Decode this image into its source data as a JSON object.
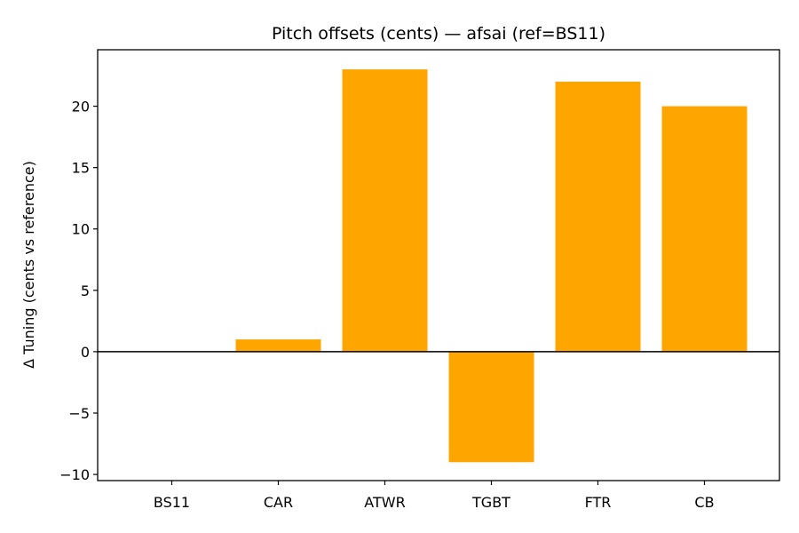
{
  "chart_data": {
    "type": "bar",
    "title": "Pitch offsets (cents) — afsai (ref=BS11)",
    "xlabel": "",
    "ylabel": "Δ Tuning (cents vs reference)",
    "categories": [
      "BS11",
      "CAR",
      "ATWR",
      "TGBT",
      "FTR",
      "CB"
    ],
    "values": [
      0,
      1,
      23,
      -9,
      22,
      20
    ],
    "ylim": [
      -10.5,
      24.6
    ],
    "yticks": [
      -10,
      -5,
      0,
      5,
      10,
      15,
      20
    ],
    "ytick_labels": [
      "−10",
      "−5",
      "0",
      "5",
      "10",
      "15",
      "20"
    ],
    "bar_color": "#ffa500",
    "zero_line": true,
    "grid": false,
    "legend": null
  }
}
